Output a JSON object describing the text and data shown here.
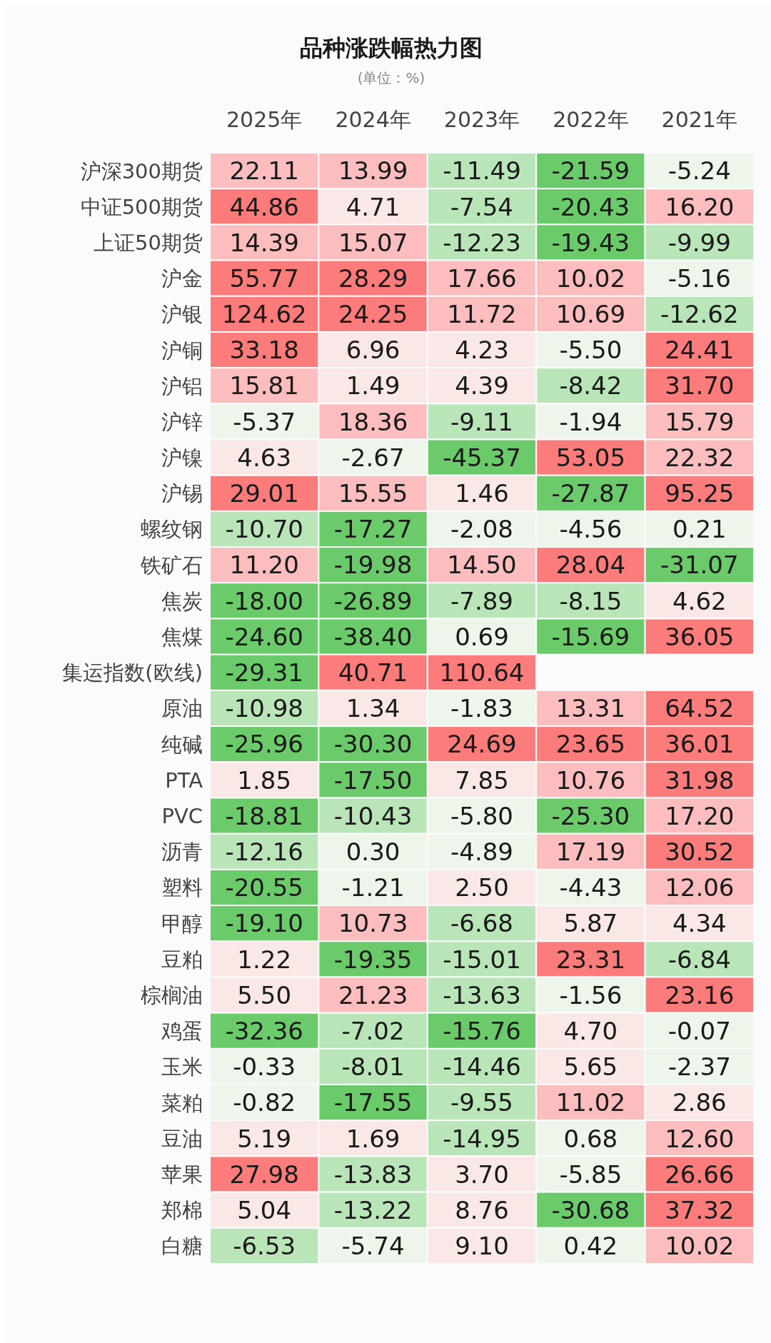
{
  "chart_data": {
    "type": "heatmap",
    "title": "品种涨跌幅热力图",
    "subtitle": "(单位：%)",
    "categories": [
      "2025年",
      "2024年",
      "2023年",
      "2022年",
      "2021年"
    ],
    "y_categories": [
      "沪深300期货",
      "中证500期货",
      "上证50期货",
      "沪金",
      "沪银",
      "沪铜",
      "沪铝",
      "沪锌",
      "沪镍",
      "沪锡",
      "螺纹钢",
      "铁矿石",
      "焦炭",
      "焦煤",
      "集运指数(欧线)",
      "原油",
      "纯碱",
      "PTA",
      "PVC",
      "沥青",
      "塑料",
      "甲醇",
      "豆粕",
      "棕榈油",
      "鸡蛋",
      "玉米",
      "菜粕",
      "豆油",
      "苹果",
      "郑棉",
      "白糖"
    ],
    "cells": [
      [
        22.11,
        13.99,
        -11.49,
        -21.59,
        -5.24
      ],
      [
        44.86,
        4.71,
        -7.54,
        -20.43,
        16.2
      ],
      [
        14.39,
        15.07,
        -12.23,
        -19.43,
        -9.99
      ],
      [
        55.77,
        28.29,
        17.66,
        10.02,
        -5.16
      ],
      [
        124.62,
        24.25,
        11.72,
        10.69,
        -12.62
      ],
      [
        33.18,
        6.96,
        4.23,
        -5.5,
        24.41
      ],
      [
        15.81,
        1.49,
        4.39,
        -8.42,
        31.7
      ],
      [
        -5.37,
        18.36,
        -9.11,
        -1.94,
        15.79
      ],
      [
        4.63,
        -2.67,
        -45.37,
        53.05,
        22.32
      ],
      [
        29.01,
        15.55,
        1.46,
        -27.87,
        95.25
      ],
      [
        -10.7,
        -17.27,
        -2.08,
        -4.56,
        0.21
      ],
      [
        11.2,
        -19.98,
        14.5,
        28.04,
        -31.07
      ],
      [
        -18.0,
        -26.89,
        -7.89,
        -8.15,
        4.62
      ],
      [
        -24.6,
        -38.4,
        0.69,
        -15.69,
        36.05
      ],
      [
        -29.31,
        40.71,
        110.64,
        null,
        null
      ],
      [
        -10.98,
        1.34,
        -1.83,
        13.31,
        64.52
      ],
      [
        -25.96,
        -30.3,
        24.69,
        23.65,
        36.01
      ],
      [
        1.85,
        -17.5,
        7.85,
        10.76,
        31.98
      ],
      [
        -18.81,
        -10.43,
        -5.8,
        -25.3,
        17.2
      ],
      [
        -12.16,
        0.3,
        -4.89,
        17.19,
        30.52
      ],
      [
        -20.55,
        -1.21,
        2.5,
        -4.43,
        12.06
      ],
      [
        -19.1,
        10.73,
        -6.68,
        5.87,
        4.34
      ],
      [
        1.22,
        -19.35,
        -15.01,
        23.31,
        -6.84
      ],
      [
        5.5,
        21.23,
        -13.63,
        -1.56,
        23.16
      ],
      [
        -32.36,
        -7.02,
        -15.76,
        4.7,
        -0.07
      ],
      [
        -0.33,
        -8.01,
        -14.46,
        5.65,
        -2.37
      ],
      [
        -0.82,
        -17.55,
        -9.55,
        11.02,
        2.86
      ],
      [
        5.19,
        1.69,
        -14.95,
        0.68,
        12.6
      ],
      [
        27.98,
        -13.83,
        3.7,
        -5.85,
        26.66
      ],
      [
        5.04,
        -13.22,
        8.76,
        -30.68,
        37.32
      ],
      [
        -6.53,
        -5.74,
        9.1,
        0.42,
        10.02
      ]
    ],
    "cell_labels": [
      [
        "22.11",
        "13.99",
        "-11.49",
        "-21.59",
        "-5.24"
      ],
      [
        "44.86",
        "4.71",
        "-7.54",
        "-20.43",
        "16.20"
      ],
      [
        "14.39",
        "15.07",
        "-12.23",
        "-19.43",
        "-9.99"
      ],
      [
        "55.77",
        "28.29",
        "17.66",
        "10.02",
        "-5.16"
      ],
      [
        "124.62",
        "24.25",
        "11.72",
        "10.69",
        "-12.62"
      ],
      [
        "33.18",
        "6.96",
        "4.23",
        "-5.50",
        "24.41"
      ],
      [
        "15.81",
        "1.49",
        "4.39",
        "-8.42",
        "31.70"
      ],
      [
        "-5.37",
        "18.36",
        "-9.11",
        "-1.94",
        "15.79"
      ],
      [
        "4.63",
        "-2.67",
        "-45.37",
        "53.05",
        "22.32"
      ],
      [
        "29.01",
        "15.55",
        "1.46",
        "-27.87",
        "95.25"
      ],
      [
        "-10.70",
        "-17.27",
        "-2.08",
        "-4.56",
        "0.21"
      ],
      [
        "11.20",
        "-19.98",
        "14.50",
        "28.04",
        "-31.07"
      ],
      [
        "-18.00",
        "-26.89",
        "-7.89",
        "-8.15",
        "4.62"
      ],
      [
        "-24.60",
        "-38.40",
        "0.69",
        "-15.69",
        "36.05"
      ],
      [
        "-29.31",
        "40.71",
        "110.64",
        null,
        null
      ],
      [
        "-10.98",
        "1.34",
        "-1.83",
        "13.31",
        "64.52"
      ],
      [
        "-25.96",
        "-30.30",
        "24.69",
        "23.65",
        "36.01"
      ],
      [
        "1.85",
        "-17.50",
        "7.85",
        "10.76",
        "31.98"
      ],
      [
        "-18.81",
        "-10.43",
        "-5.80",
        "-25.30",
        "17.20"
      ],
      [
        "-12.16",
        "0.30",
        "-4.89",
        "17.19",
        "30.52"
      ],
      [
        "-20.55",
        "-1.21",
        "2.50",
        "-4.43",
        "12.06"
      ],
      [
        "-19.10",
        "10.73",
        "-6.68",
        "5.87",
        "4.34"
      ],
      [
        "1.22",
        "-19.35",
        "-15.01",
        "23.31",
        "-6.84"
      ],
      [
        "5.50",
        "21.23",
        "-13.63",
        "-1.56",
        "23.16"
      ],
      [
        "-32.36",
        "-7.02",
        "-15.76",
        "4.70",
        "-0.07"
      ],
      [
        "-0.33",
        "-8.01",
        "-14.46",
        "5.65",
        "-2.37"
      ],
      [
        "-0.82",
        "-17.55",
        "-9.55",
        "11.02",
        "2.86"
      ],
      [
        "5.19",
        "1.69",
        "-14.95",
        "0.68",
        "12.60"
      ],
      [
        "27.98",
        "-13.83",
        "3.70",
        "-5.85",
        "26.66"
      ],
      [
        "5.04",
        "-13.22",
        "8.76",
        "-30.68",
        "37.32"
      ],
      [
        "-6.53",
        "-5.74",
        "9.10",
        "0.42",
        "10.02"
      ]
    ]
  }
}
